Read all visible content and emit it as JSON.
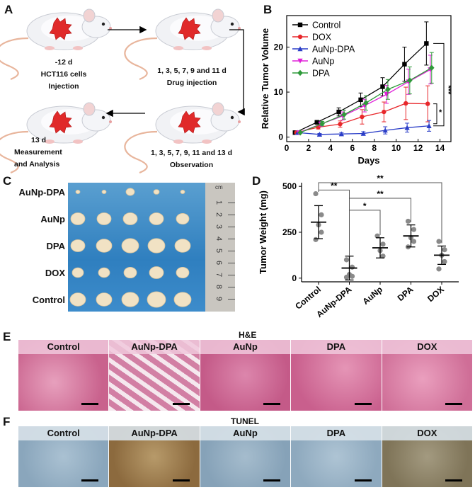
{
  "panel_labels": {
    "a": "A",
    "b": "B",
    "c": "C",
    "d": "D",
    "e": "E",
    "f": "F"
  },
  "panel_a": {
    "step1_day": "-12 d",
    "step1_desc": "HCT116 cells",
    "step1_desc2": "Injection",
    "step2_days": "1, 3, 5, 7, 9 and 11 d",
    "step2_desc": "Drug injection",
    "step3_days": "1, 3, 5, 7, 9, 11 and 13 d",
    "step3_desc": "Observation",
    "step4_day": "13 d",
    "step4_desc": "Measurement",
    "step4_desc2": "and Analysis"
  },
  "panel_c": {
    "rows": [
      "AuNp-DPA",
      "AuNp",
      "DPA",
      "DOX",
      "Control"
    ],
    "ruler_unit": "cm",
    "ruler_ticks": [
      "1",
      "2",
      "3",
      "4",
      "5",
      "6",
      "7",
      "8",
      "9"
    ]
  },
  "panel_e": {
    "title": "H&E",
    "tiles": [
      "Control",
      "AuNp-DPA",
      "AuNp",
      "DPA",
      "DOX"
    ]
  },
  "panel_f": {
    "title": "TUNEL",
    "tiles": [
      "Control",
      "AuNp-DPA",
      "AuNp",
      "DPA",
      "DOX"
    ]
  },
  "chart_data": [
    {
      "type": "line",
      "title": "",
      "xlabel": "Days",
      "ylabel": "Relative Tumor Volume",
      "xlim": [
        0,
        15
      ],
      "ylim": [
        -1,
        27
      ],
      "xticks": [
        0,
        2,
        4,
        6,
        8,
        10,
        12,
        14
      ],
      "yticks": [
        0,
        10,
        20
      ],
      "x": [
        1,
        3,
        5,
        7,
        9,
        11,
        13
      ],
      "series": [
        {
          "name": "Control",
          "color": "#000000",
          "marker": "square",
          "values": [
            1,
            3.3,
            5.6,
            8.3,
            11.2,
            16.2,
            20.8
          ],
          "err": [
            0,
            0.4,
            0.9,
            1.5,
            2.0,
            3.8,
            4.8
          ]
        },
        {
          "name": "DOX",
          "color": "#e8272b",
          "marker": "circle",
          "values": [
            1,
            2.2,
            2.9,
            4.5,
            5.6,
            7.5,
            7.4
          ],
          "err": [
            0,
            0.4,
            0.7,
            1.6,
            2.2,
            3.6,
            4.0
          ]
        },
        {
          "name": "AuNp-DPA",
          "color": "#2b3ec8",
          "marker": "triangle",
          "values": [
            1,
            0.6,
            0.7,
            0.8,
            1.5,
            2.1,
            2.5
          ],
          "err": [
            0,
            0.2,
            0.3,
            0.4,
            0.8,
            1.0,
            1.2
          ]
        },
        {
          "name": "AuNp",
          "color": "#e020d8",
          "marker": "tri-down",
          "values": [
            1,
            2.9,
            4.7,
            7.0,
            9.5,
            12.3,
            15.0
          ],
          "err": [
            0,
            0.5,
            0.9,
            1.4,
            2.0,
            2.8,
            3.2
          ]
        },
        {
          "name": "DPA",
          "color": "#2e9a3a",
          "marker": "diamond",
          "values": [
            1,
            3.0,
            5.0,
            7.6,
            10.6,
            12.6,
            15.4
          ],
          "err": [
            0,
            0.5,
            1.0,
            1.6,
            2.2,
            3.0,
            3.4
          ]
        }
      ],
      "annotations": [
        "***",
        "*"
      ]
    },
    {
      "type": "scatter",
      "title": "",
      "xlabel": "",
      "ylabel": "Tumor Weight (mg)",
      "ylim": [
        -20,
        520
      ],
      "yticks": [
        0,
        250,
        500
      ],
      "categories": [
        "Control",
        "AuNp-DPA",
        "AuNp",
        "DPA",
        "DOX"
      ],
      "points": [
        [
          460,
          345,
          290,
          250,
          210
        ],
        [
          100,
          60,
          20,
          10,
          5
        ],
        [
          230,
          185,
          150,
          120
        ],
        [
          310,
          265,
          220,
          200,
          170
        ],
        [
          200,
          155,
          125,
          90,
          50
        ]
      ],
      "mean": [
        305,
        55,
        165,
        230,
        125
      ],
      "sd": [
        90,
        65,
        55,
        60,
        50
      ],
      "significance": [
        {
          "from": "AuNp-DPA",
          "to": "Control",
          "label": "**"
        },
        {
          "from": "AuNp-DPA",
          "to": "AuNp",
          "label": "*"
        },
        {
          "from": "AuNp-DPA",
          "to": "DPA",
          "label": "**"
        },
        {
          "from": "Control",
          "to": "DOX",
          "label": "**"
        }
      ]
    }
  ]
}
